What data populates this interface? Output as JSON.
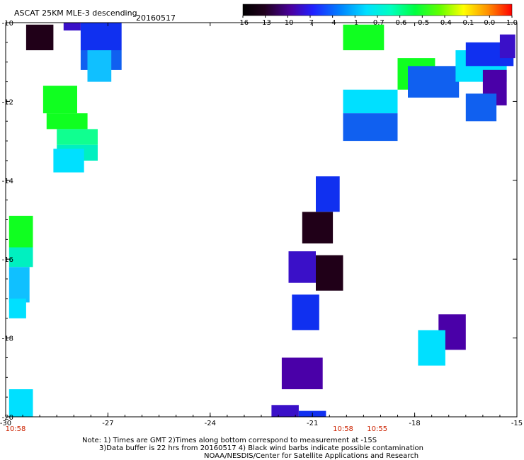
{
  "title": "ASCAT 25KM MLE-3 descending",
  "date": "20160517",
  "colorbar": {
    "ticks": [
      "-16",
      "-13",
      "-10",
      "-7",
      "-4",
      "-1",
      "-0.7",
      "-0.6",
      "-0.5",
      "-0.4",
      "-0.1",
      "0.0",
      "1.0"
    ]
  },
  "notes": {
    "line1": "Note: 1) Times are GMT 2)Times along bottom correspond to measurement at -15S",
    "line2": "3)Data buffer is 22 hrs from 20160517 4) Black wind barbs indicate possible contamination",
    "line3": "NOAA/NESDIS/Center for Satellite Applications and Research"
  },
  "chart_data": {
    "type": "heatmap",
    "title": "ASCAT 25KM MLE-3 descending",
    "subtitle": "20160517",
    "xlabel": "",
    "ylabel": "",
    "x_ticks": [
      "-30",
      "-27",
      "-24",
      "-21",
      "-18",
      "-15"
    ],
    "y_ticks": [
      "-10",
      "-12",
      "-14",
      "-16",
      "-18",
      "-20"
    ],
    "xlim": [
      -30,
      -15
    ],
    "ylim": [
      -20,
      -10
    ],
    "time_labels": [
      {
        "text": "10:58",
        "lon": -30
      },
      {
        "text": "10:58",
        "lon": -20.1
      },
      {
        "text": "10:55",
        "lon": -19.1
      }
    ],
    "grid": false,
    "colorscale": "rainbow",
    "colors": {
      "black": "#200018",
      "purple": "#4a00a8",
      "indigo": "#3a10c8",
      "blue": "#1030f0",
      "medblue": "#1060f0",
      "azure": "#1890ff",
      "lightblue": "#10c0ff",
      "cyan": "#00e0ff",
      "teal": "#00f0c0",
      "mint": "#10ff90",
      "green": "#10ff20"
    },
    "cells": [
      {
        "lon": [
          -29.4,
          -28.6
        ],
        "lat": [
          -10.7,
          -10.05
        ],
        "c": "black"
      },
      {
        "lon": [
          -28.3,
          -27.8
        ],
        "lat": [
          -10.2,
          -10.0
        ],
        "c": "indigo"
      },
      {
        "lon": [
          -27.8,
          -26.6
        ],
        "lat": [
          -10.7,
          -10.0
        ],
        "c": "blue"
      },
      {
        "lon": [
          -27.8,
          -26.6
        ],
        "lat": [
          -11.2,
          -10.7
        ],
        "c": "medblue"
      },
      {
        "lon": [
          -27.6,
          -26.9
        ],
        "lat": [
          -11.5,
          -10.7
        ],
        "c": "lightblue"
      },
      {
        "lon": [
          -28.9,
          -27.9
        ],
        "lat": [
          -12.3,
          -11.6
        ],
        "c": "green"
      },
      {
        "lon": [
          -28.8,
          -27.6
        ],
        "lat": [
          -12.7,
          -12.3
        ],
        "c": "green"
      },
      {
        "lon": [
          -28.5,
          -27.3
        ],
        "lat": [
          -13.1,
          -12.7
        ],
        "c": "mint"
      },
      {
        "lon": [
          -28.5,
          -27.3
        ],
        "lat": [
          -13.5,
          -13.1
        ],
        "c": "teal"
      },
      {
        "lon": [
          -28.6,
          -27.7
        ],
        "lat": [
          -13.8,
          -13.2
        ],
        "c": "cyan"
      },
      {
        "lon": [
          -29.9,
          -29.2
        ],
        "lat": [
          -15.7,
          -14.9
        ],
        "c": "green"
      },
      {
        "lon": [
          -29.9,
          -29.2
        ],
        "lat": [
          -16.2,
          -15.7
        ],
        "c": "teal"
      },
      {
        "lon": [
          -29.9,
          -29.3
        ],
        "lat": [
          -17.1,
          -16.2
        ],
        "c": "lightblue"
      },
      {
        "lon": [
          -29.9,
          -29.4
        ],
        "lat": [
          -17.5,
          -17.0
        ],
        "c": "cyan"
      },
      {
        "lon": [
          -29.9,
          -29.2
        ],
        "lat": [
          -20.0,
          -19.3
        ],
        "c": "cyan"
      },
      {
        "lon": [
          -20.9,
          -20.2
        ],
        "lat": [
          -14.8,
          -13.9
        ],
        "c": "blue"
      },
      {
        "lon": [
          -21.3,
          -20.4
        ],
        "lat": [
          -15.6,
          -14.8
        ],
        "c": "black"
      },
      {
        "lon": [
          -21.7,
          -20.9
        ],
        "lat": [
          -16.6,
          -15.8
        ],
        "c": "indigo"
      },
      {
        "lon": [
          -20.9,
          -20.1
        ],
        "lat": [
          -16.8,
          -15.9
        ],
        "c": "black"
      },
      {
        "lon": [
          -21.6,
          -20.8
        ],
        "lat": [
          -17.8,
          -16.9
        ],
        "c": "blue"
      },
      {
        "lon": [
          -21.9,
          -20.7
        ],
        "lat": [
          -19.3,
          -18.5
        ],
        "c": "purple"
      },
      {
        "lon": [
          -22.2,
          -21.4
        ],
        "lat": [
          -20.0,
          -19.7
        ],
        "c": "indigo"
      },
      {
        "lon": [
          -21.4,
          -20.6
        ],
        "lat": [
          -20.0,
          -19.85
        ],
        "c": "blue"
      },
      {
        "lon": [
          -20.1,
          -18.9
        ],
        "lat": [
          -10.7,
          -10.05
        ],
        "c": "green"
      },
      {
        "lon": [
          -20.1,
          -18.5
        ],
        "lat": [
          -12.3,
          -11.7
        ],
        "c": "cyan"
      },
      {
        "lon": [
          -20.1,
          -18.5
        ],
        "lat": [
          -13.0,
          -12.3
        ],
        "c": "medblue"
      },
      {
        "lon": [
          -18.5,
          -17.4
        ],
        "lat": [
          -11.7,
          -10.9
        ],
        "c": "green"
      },
      {
        "lon": [
          -18.2,
          -16.7
        ],
        "lat": [
          -11.9,
          -11.1
        ],
        "c": "medblue"
      },
      {
        "lon": [
          -16.8,
          -15.3
        ],
        "lat": [
          -11.5,
          -10.7
        ],
        "c": "cyan"
      },
      {
        "lon": [
          -16.5,
          -15.1
        ],
        "lat": [
          -11.1,
          -10.5
        ],
        "c": "blue"
      },
      {
        "lon": [
          -15.5,
          -15.05
        ],
        "lat": [
          -10.9,
          -10.3
        ],
        "c": "indigo"
      },
      {
        "lon": [
          -16.0,
          -15.3
        ],
        "lat": [
          -12.1,
          -11.2
        ],
        "c": "purple"
      },
      {
        "lon": [
          -16.5,
          -15.6
        ],
        "lat": [
          -12.5,
          -11.8
        ],
        "c": "medblue"
      },
      {
        "lon": [
          -17.3,
          -16.5
        ],
        "lat": [
          -18.3,
          -17.4
        ],
        "c": "purple"
      },
      {
        "lon": [
          -17.9,
          -17.1
        ],
        "lat": [
          -18.7,
          -17.8
        ],
        "c": "cyan"
      }
    ]
  }
}
